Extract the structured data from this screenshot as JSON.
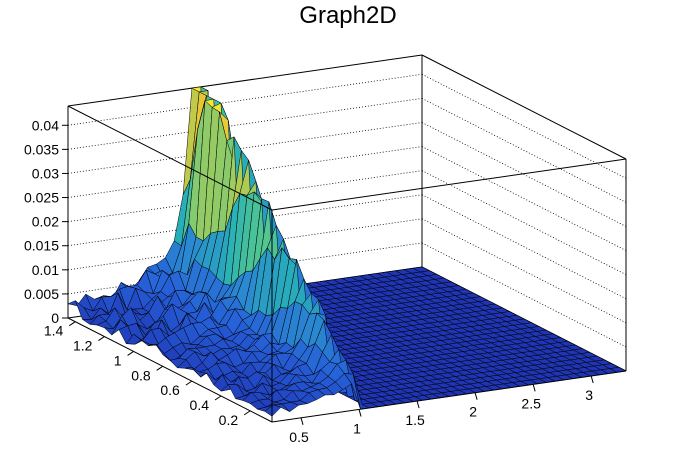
{
  "chart_data": {
    "type": "surface",
    "title": "Graph2D",
    "z_ticks": [
      "0",
      "0.005",
      "0.01",
      "0.015",
      "0.02",
      "0.025",
      "0.03",
      "0.035",
      "0.04"
    ],
    "y_ticks": [
      "0.2",
      "0.4",
      "0.6",
      "0.8",
      "1",
      "1.2",
      "1.4"
    ],
    "x_ticks": [
      "0.5",
      "1",
      "1.5",
      "2",
      "2.5",
      "3"
    ],
    "xlim": [
      0.25,
      3.3
    ],
    "ylim": [
      0.05,
      1.45
    ],
    "zlim": [
      0,
      0.044
    ],
    "colormap": [
      "#1f35b5",
      "#2660d8",
      "#2a8ad0",
      "#28b1b6",
      "#55c78e",
      "#a6cc59",
      "#e6c436",
      "#f6e933"
    ],
    "surface_features": {
      "ridge_diagonal": "z peaks along x ≈ y (from x≈1 at y≈0.1 to x≈1.5 at y≈1.45), about 0.042 near the back",
      "peaks": [
        {
          "x": 1.25,
          "y": 1.3,
          "z": 0.043
        },
        {
          "x": 1.45,
          "y": 1.45,
          "z": 0.044
        }
      ],
      "below_ridge": "≈0 for x > ridge",
      "above_ridge": "small, rising from ≈0.002 at x≈0.25 to ≈0.03 near the ridge"
    }
  }
}
